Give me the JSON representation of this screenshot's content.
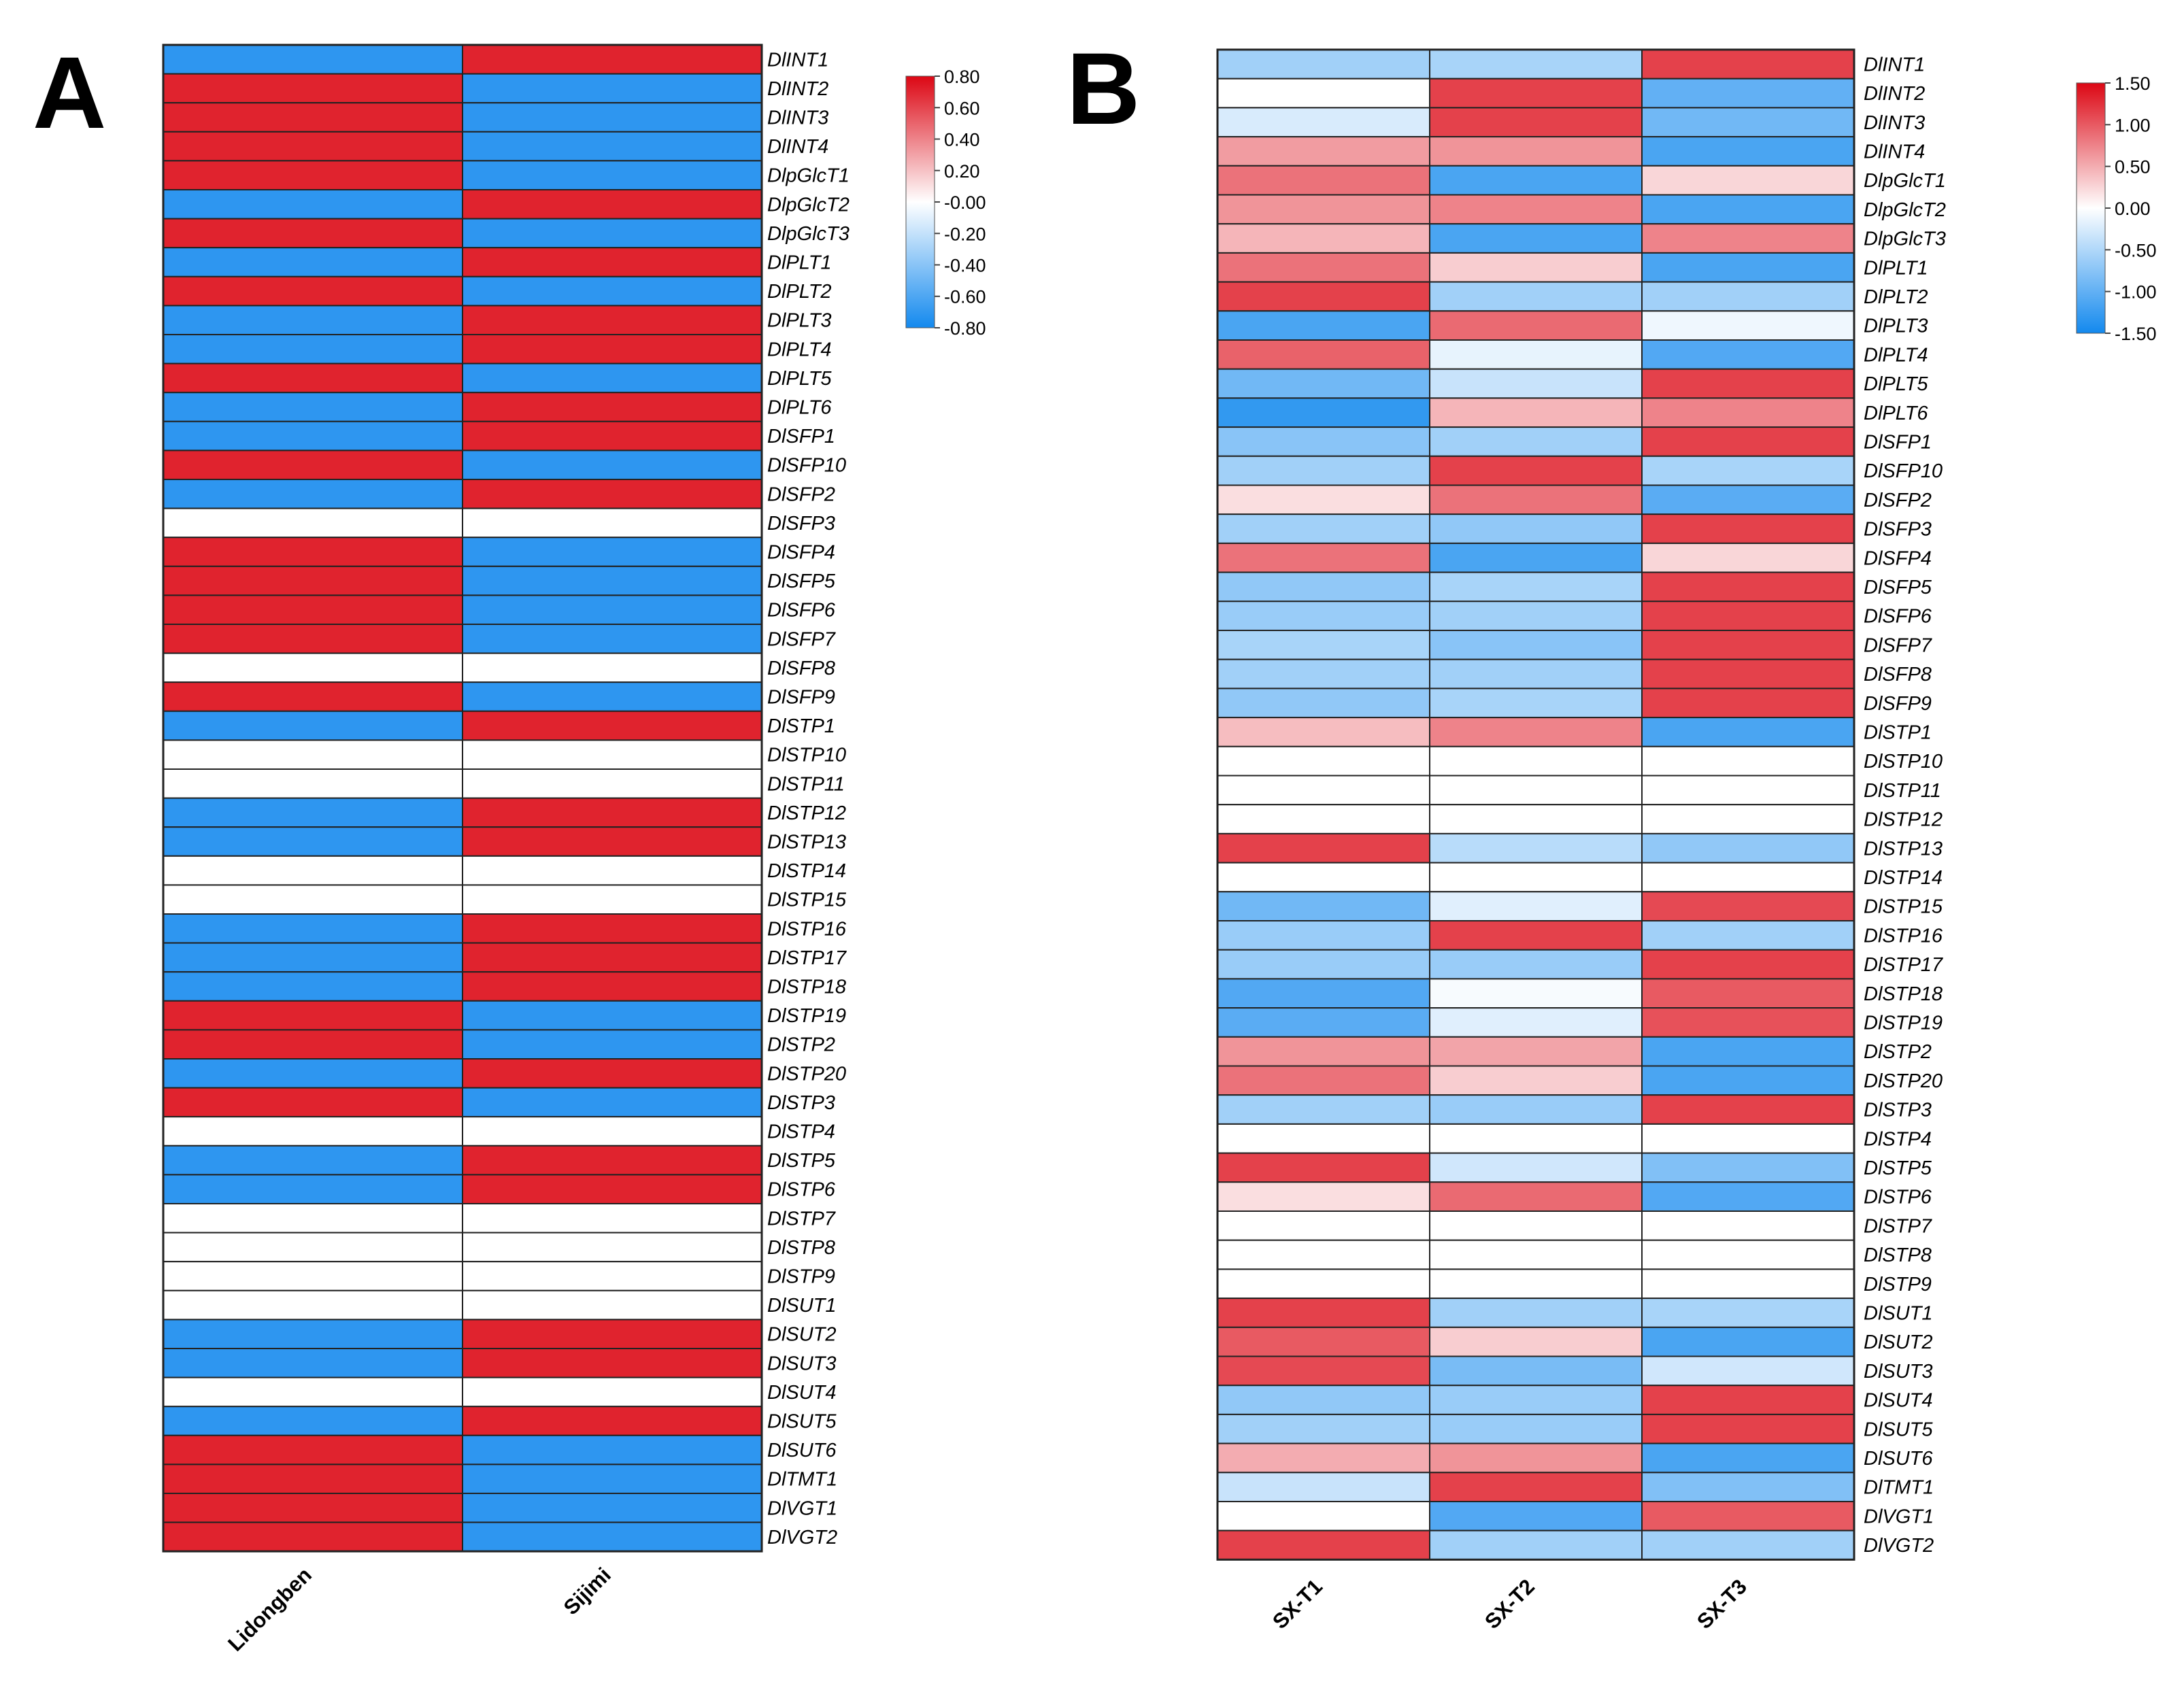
{
  "colors": {
    "low": "#1389ee",
    "mid": "#ffffff",
    "high": "#dc0714",
    "grid": "#222222"
  },
  "chart_data": [
    {
      "type": "heatmap",
      "panel_label": "A",
      "columns": [
        "Lidongben",
        "Sijimi"
      ],
      "rows": [
        "DlINT1",
        "DlINT2",
        "DlINT3",
        "DlINT4",
        "DlpGlcT1",
        "DlpGlcT2",
        "DlpGlcT3",
        "DlPLT1",
        "DlPLT2",
        "DlPLT3",
        "DlPLT4",
        "DlPLT5",
        "DlPLT6",
        "DlSFP1",
        "DlSFP10",
        "DlSFP2",
        "DlSFP3",
        "DlSFP4",
        "DlSFP5",
        "DlSFP6",
        "DlSFP7",
        "DlSFP8",
        "DlSFP9",
        "DlSTP1",
        "DlSTP10",
        "DlSTP11",
        "DlSTP12",
        "DlSTP13",
        "DlSTP14",
        "DlSTP15",
        "DlSTP16",
        "DlSTP17",
        "DlSTP18",
        "DlSTP19",
        "DlSTP2",
        "DlSTP20",
        "DlSTP3",
        "DlSTP4",
        "DlSTP5",
        "DlSTP6",
        "DlSTP7",
        "DlSTP8",
        "DlSTP9",
        "DlSUT1",
        "DlSUT2",
        "DlSUT3",
        "DlSUT4",
        "DlSUT5",
        "DlSUT6",
        "DlTMT1",
        "DlVGT1",
        "DlVGT2"
      ],
      "values": [
        [
          -0.71,
          0.71
        ],
        [
          0.71,
          -0.71
        ],
        [
          0.71,
          -0.71
        ],
        [
          0.71,
          -0.71
        ],
        [
          0.71,
          -0.71
        ],
        [
          -0.71,
          0.71
        ],
        [
          0.71,
          -0.71
        ],
        [
          -0.71,
          0.71
        ],
        [
          0.71,
          -0.71
        ],
        [
          -0.71,
          0.71
        ],
        [
          -0.71,
          0.71
        ],
        [
          0.71,
          -0.71
        ],
        [
          -0.71,
          0.71
        ],
        [
          -0.71,
          0.71
        ],
        [
          0.71,
          -0.71
        ],
        [
          -0.71,
          0.71
        ],
        [
          0,
          0
        ],
        [
          0.71,
          -0.71
        ],
        [
          0.71,
          -0.71
        ],
        [
          0.71,
          -0.71
        ],
        [
          0.71,
          -0.71
        ],
        [
          0,
          0
        ],
        [
          0.71,
          -0.71
        ],
        [
          -0.71,
          0.71
        ],
        [
          0,
          0
        ],
        [
          0,
          0
        ],
        [
          -0.71,
          0.71
        ],
        [
          -0.71,
          0.71
        ],
        [
          0,
          0
        ],
        [
          0,
          0
        ],
        [
          -0.71,
          0.71
        ],
        [
          -0.71,
          0.71
        ],
        [
          -0.71,
          0.71
        ],
        [
          0.71,
          -0.71
        ],
        [
          0.71,
          -0.71
        ],
        [
          -0.71,
          0.71
        ],
        [
          0.71,
          -0.71
        ],
        [
          0,
          0
        ],
        [
          -0.71,
          0.71
        ],
        [
          -0.71,
          0.71
        ],
        [
          0,
          0
        ],
        [
          0,
          0
        ],
        [
          0,
          0
        ],
        [
          0,
          0
        ],
        [
          -0.71,
          0.71
        ],
        [
          -0.71,
          0.71
        ],
        [
          0,
          0
        ],
        [
          -0.71,
          0.71
        ],
        [
          0.71,
          -0.71
        ],
        [
          0.71,
          -0.71
        ],
        [
          0.71,
          -0.71
        ],
        [
          0.71,
          -0.71
        ]
      ],
      "scale": {
        "min": -0.8,
        "max": 0.8,
        "ticks": [
          0.8,
          0.6,
          0.4,
          0.2,
          0,
          -0.2,
          -0.4,
          -0.6,
          -0.8
        ],
        "tick_labels": [
          "0.80",
          "0.60",
          "0.40",
          "0.20",
          "-0.00",
          "-0.20",
          "-0.40",
          "-0.60",
          "-0.80"
        ]
      }
    },
    {
      "type": "heatmap",
      "panel_label": "B",
      "columns": [
        "SX-T1",
        "SX-T2",
        "SX-T3"
      ],
      "rows": [
        "DlINT1",
        "DlINT2",
        "DlINT3",
        "DlINT4",
        "DlpGlcT1",
        "DlpGlcT2",
        "DlpGlcT3",
        "DlPLT1",
        "DlPLT2",
        "DlPLT3",
        "DlPLT4",
        "DlPLT5",
        "DlPLT6",
        "DlSFP1",
        "DlSFP10",
        "DlSFP2",
        "DlSFP3",
        "DlSFP4",
        "DlSFP5",
        "DlSFP6",
        "DlSFP7",
        "DlSFP8",
        "DlSFP9",
        "DlSTP1",
        "DlSTP10",
        "DlSTP11",
        "DlSTP12",
        "DlSTP13",
        "DlSTP14",
        "DlSTP15",
        "DlSTP16",
        "DlSTP17",
        "DlSTP18",
        "DlSTP19",
        "DlSTP2",
        "DlSTP20",
        "DlSTP3",
        "DlSTP4",
        "DlSTP5",
        "DlSTP6",
        "DlSTP7",
        "DlSTP8",
        "DlSTP9",
        "DlSUT1",
        "DlSUT2",
        "DlSUT3",
        "DlSUT4",
        "DlSUT5",
        "DlSUT6",
        "DlTMT1",
        "DlVGT1",
        "DlVGT2"
      ],
      "values": [
        [
          -0.6,
          -0.55,
          1.15
        ],
        [
          0,
          1.15,
          -1.0
        ],
        [
          -0.25,
          1.15,
          -0.9
        ],
        [
          0.6,
          0.65,
          -1.15
        ],
        [
          0.85,
          -1.15,
          0.25
        ],
        [
          0.65,
          0.75,
          -1.15
        ],
        [
          0.45,
          -1.15,
          0.75
        ],
        [
          0.85,
          0.3,
          -1.15
        ],
        [
          1.15,
          -0.6,
          -0.6
        ],
        [
          -1.15,
          0.9,
          -0.1
        ],
        [
          0.95,
          -0.15,
          -1.1
        ],
        [
          -0.9,
          -0.35,
          1.15
        ],
        [
          -1.3,
          0.45,
          0.75
        ],
        [
          -0.75,
          -0.6,
          1.15
        ],
        [
          -0.6,
          1.15,
          -0.55
        ],
        [
          0.2,
          0.85,
          -1.05
        ],
        [
          -0.6,
          -0.7,
          1.15
        ],
        [
          0.85,
          -1.15,
          0.25
        ],
        [
          -0.7,
          -0.55,
          1.15
        ],
        [
          -0.65,
          -0.6,
          1.15
        ],
        [
          -0.55,
          -0.75,
          1.15
        ],
        [
          -0.6,
          -0.6,
          1.15
        ],
        [
          -0.7,
          -0.55,
          1.15
        ],
        [
          0.4,
          0.75,
          -1.15
        ],
        [
          0,
          0,
          0
        ],
        [
          0,
          0,
          0
        ],
        [
          0,
          0,
          0
        ],
        [
          1.15,
          -0.45,
          -0.7
        ],
        [
          0,
          0,
          0
        ],
        [
          -0.9,
          -0.2,
          1.1
        ],
        [
          -0.65,
          1.15,
          -0.6
        ],
        [
          -0.65,
          -0.65,
          1.15
        ],
        [
          -1.1,
          -0.05,
          1.0
        ],
        [
          -1.05,
          -0.2,
          1.05
        ],
        [
          0.65,
          0.55,
          -1.15
        ],
        [
          0.85,
          0.3,
          -1.15
        ],
        [
          -0.6,
          -0.65,
          1.15
        ],
        [
          0,
          0,
          0
        ],
        [
          1.15,
          -0.3,
          -0.8
        ],
        [
          0.2,
          0.9,
          -1.1
        ],
        [
          0,
          0,
          0
        ],
        [
          0,
          0,
          0
        ],
        [
          0,
          0,
          0
        ],
        [
          1.15,
          -0.6,
          -0.55
        ],
        [
          1.0,
          0.3,
          -1.15
        ],
        [
          1.1,
          -0.85,
          -0.3
        ],
        [
          -0.7,
          -0.65,
          1.15
        ],
        [
          -0.6,
          -0.65,
          1.15
        ],
        [
          0.5,
          0.65,
          -1.15
        ],
        [
          -0.35,
          1.15,
          -0.8
        ],
        [
          0,
          -1.1,
          1.0
        ],
        [
          1.15,
          -0.6,
          -0.6
        ]
      ],
      "scale": {
        "min": -1.5,
        "max": 1.5,
        "ticks": [
          1.5,
          1,
          0.5,
          0,
          -0.5,
          -1,
          -1.5
        ],
        "tick_labels": [
          "1.50",
          "1.00",
          "0.50",
          "0.00",
          "-0.50",
          "-1.00",
          "-1.50"
        ]
      }
    }
  ]
}
